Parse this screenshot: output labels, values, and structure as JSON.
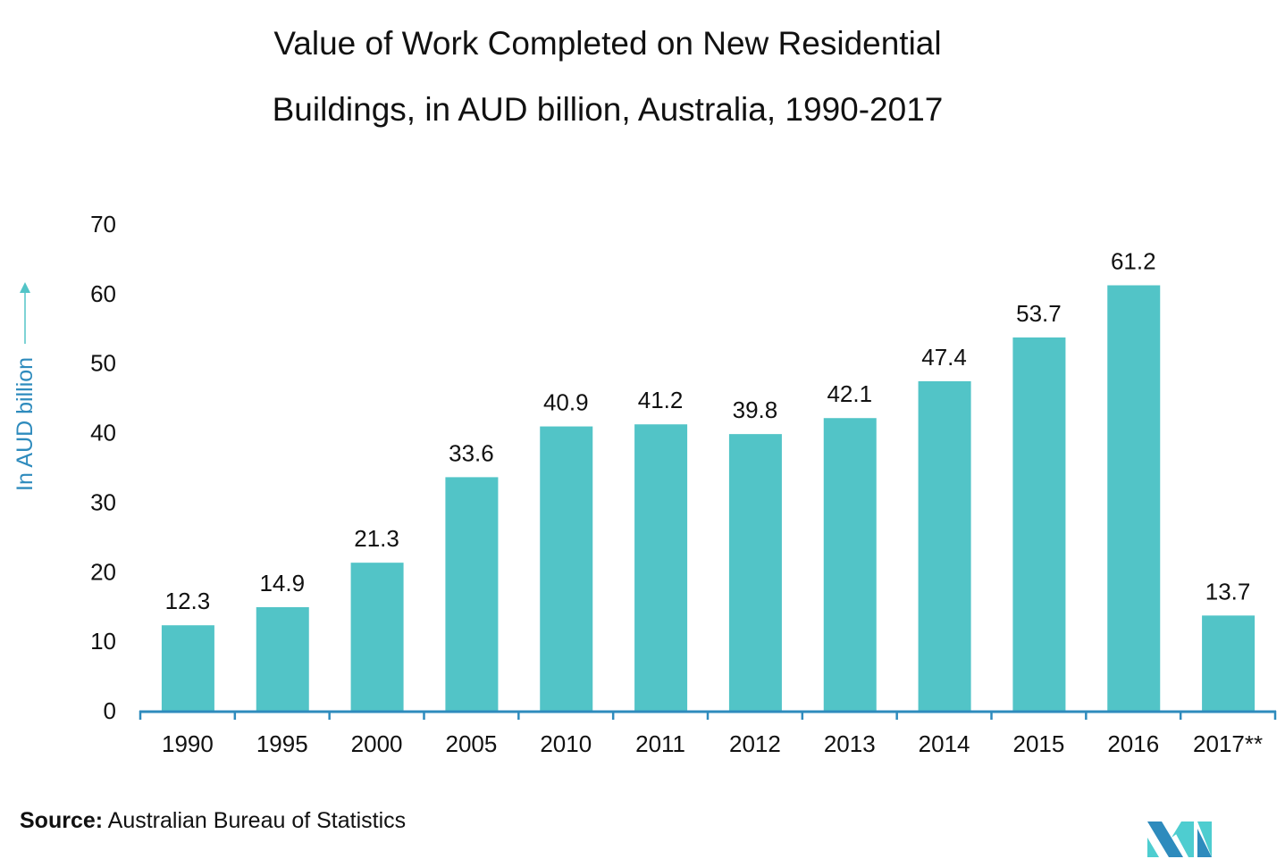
{
  "chart_data": {
    "type": "bar",
    "title_lines": [
      "Value of Work Completed on New Residential",
      "Buildings, in AUD billion, Australia, 1990-2017"
    ],
    "ylabel": "In AUD billion",
    "xlabel": "",
    "categories": [
      "1990",
      "1995",
      "2000",
      "2005",
      "2010",
      "2011",
      "2012",
      "2013",
      "2014",
      "2015",
      "2016",
      "2017**"
    ],
    "values": [
      12.3,
      14.9,
      21.3,
      33.6,
      40.9,
      41.2,
      39.8,
      42.1,
      47.4,
      53.7,
      61.2,
      13.7
    ],
    "value_labels": [
      "12.3",
      "14.9",
      "21.3",
      "33.6",
      "40.9",
      "41.2",
      "39.8",
      "42.1",
      "47.4",
      "53.7",
      "61.2",
      "13.7"
    ],
    "ylim": [
      0,
      70
    ],
    "yticks": [
      "0",
      "10",
      "20",
      "30",
      "40",
      "50",
      "60",
      "70"
    ],
    "grid": false,
    "colors": {
      "bar": "#52c4c7",
      "axis": "#2e8bbd",
      "ylabel": "#2e8bbd",
      "arrow": "#52c4c7"
    }
  },
  "source": {
    "label": "Source:",
    "text": " Australian Bureau of Statistics"
  }
}
